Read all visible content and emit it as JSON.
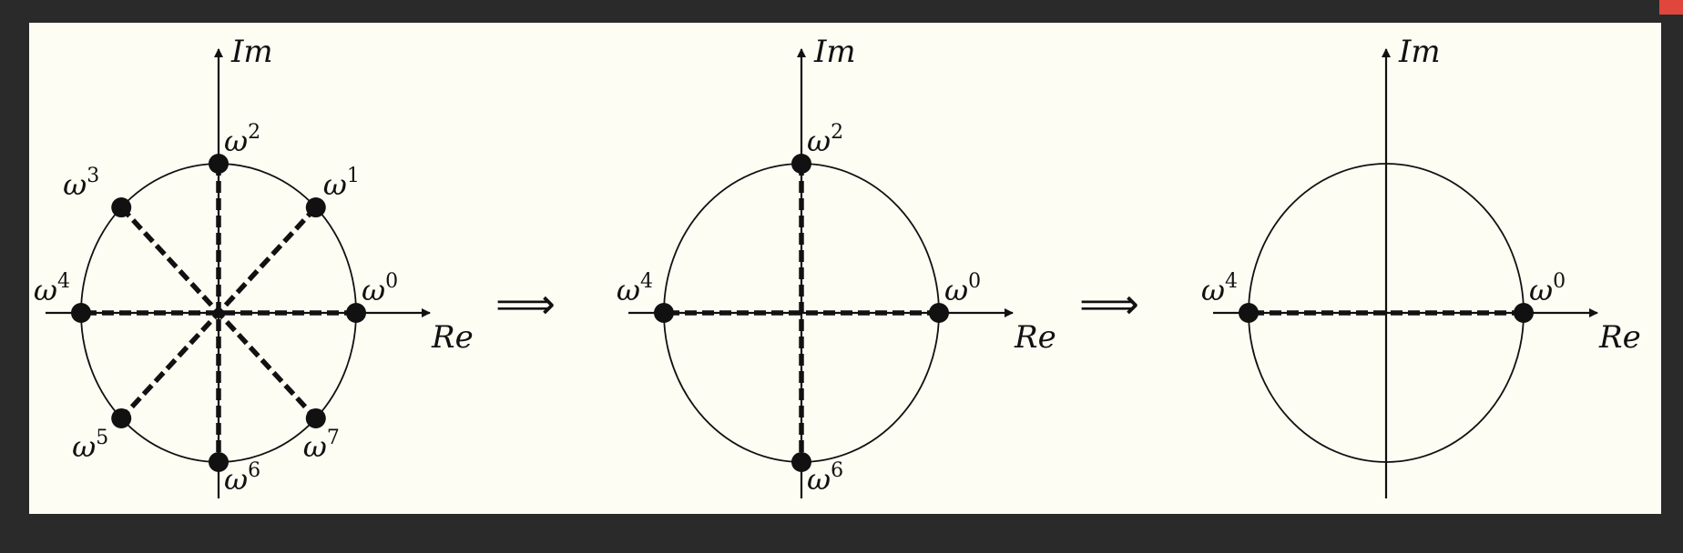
{
  "panels": [
    {
      "axis_x_label": "Re",
      "axis_y_label": "Im",
      "points": [
        {
          "k": 0,
          "base": "ω",
          "exp": "0"
        },
        {
          "k": 1,
          "base": "ω",
          "exp": "1"
        },
        {
          "k": 2,
          "base": "ω",
          "exp": "2"
        },
        {
          "k": 3,
          "base": "ω",
          "exp": "3"
        },
        {
          "k": 4,
          "base": "ω",
          "exp": "4"
        },
        {
          "k": 5,
          "base": "ω",
          "exp": "5"
        },
        {
          "k": 6,
          "base": "ω",
          "exp": "6"
        },
        {
          "k": 7,
          "base": "ω",
          "exp": "7"
        }
      ],
      "dashed_pairs": [
        [
          0,
          4
        ],
        [
          1,
          5
        ],
        [
          2,
          6
        ],
        [
          3,
          7
        ]
      ]
    },
    {
      "axis_x_label": "Re",
      "axis_y_label": "Im",
      "points": [
        {
          "k": 0,
          "base": "ω",
          "exp": "0"
        },
        {
          "k": 2,
          "base": "ω",
          "exp": "2"
        },
        {
          "k": 4,
          "base": "ω",
          "exp": "4"
        },
        {
          "k": 6,
          "base": "ω",
          "exp": "6"
        }
      ],
      "dashed_pairs": [
        [
          0,
          4
        ],
        [
          2,
          6
        ]
      ]
    },
    {
      "axis_x_label": "Re",
      "axis_y_label": "Im",
      "points": [
        {
          "k": 0,
          "base": "ω",
          "exp": "0"
        },
        {
          "k": 4,
          "base": "ω",
          "exp": "4"
        }
      ],
      "dashed_pairs": [
        [
          0,
          4
        ]
      ]
    }
  ],
  "arrows": [
    "⟹",
    "⟹"
  ],
  "colors": {
    "background": "#2a2a2a",
    "canvas": "#fdfdf4",
    "ink": "#111111",
    "corner": "#e0463c"
  }
}
